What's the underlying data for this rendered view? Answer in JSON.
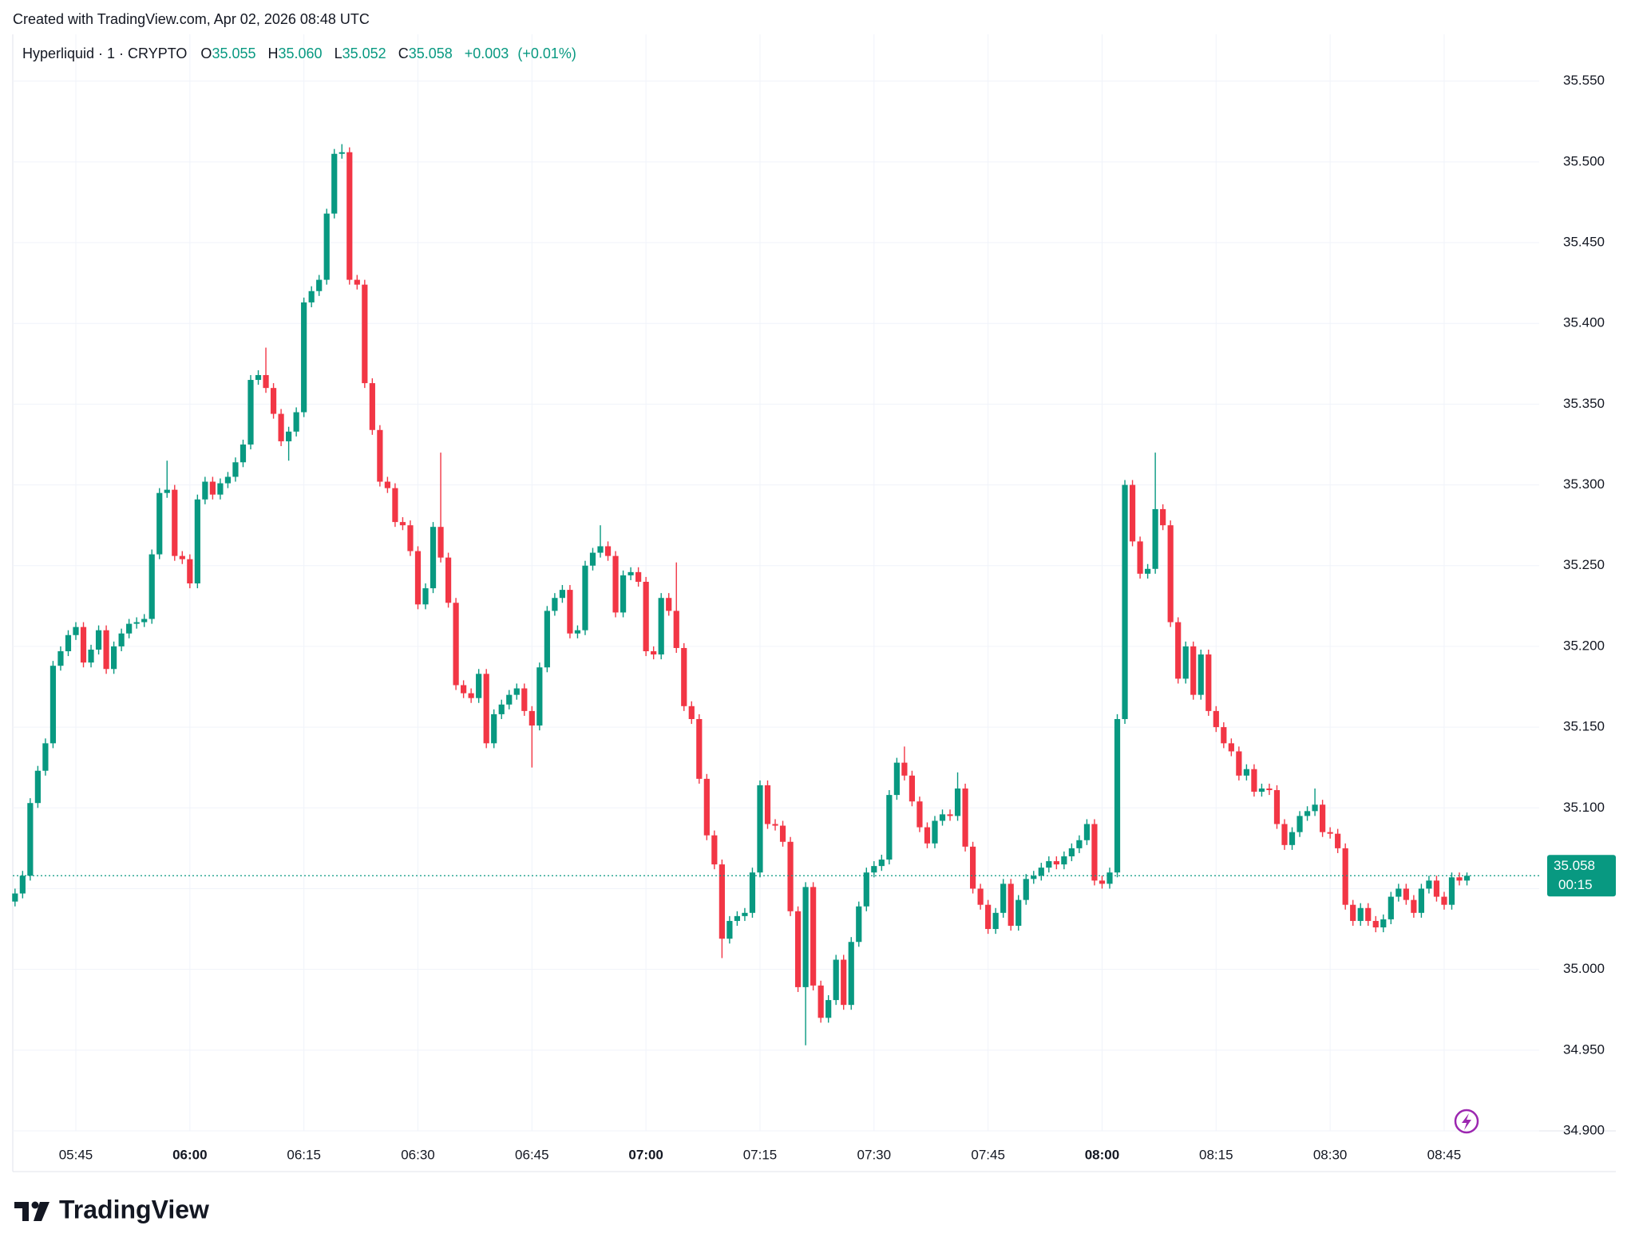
{
  "header": {
    "created": "Created with TradingView.com, Apr 02, 2026 08:48 UTC"
  },
  "footer": {
    "brand": "TradingView"
  },
  "chart_data": {
    "type": "candlestick",
    "title": "Hyperliquid · 1 · CRYPTO",
    "legend_keys": [
      "O",
      "H",
      "L",
      "C"
    ],
    "legend_values": [
      "35.055",
      "35.060",
      "35.052",
      "35.058"
    ],
    "change": "+0.003",
    "change_pct": "(+0.01%)",
    "countdown": "00:15",
    "up_color": "#089981",
    "down_color": "#f23645",
    "grid": true,
    "ylim": [
      34.9,
      35.579
    ],
    "yticks": [
      {
        "value": 34.9,
        "label": "34.900"
      },
      {
        "value": 34.95,
        "label": "34.950"
      },
      {
        "value": 35.0,
        "label": "35.000"
      },
      {
        "value": 35.05,
        "label": "35.050"
      },
      {
        "value": 35.1,
        "label": "35.100"
      },
      {
        "value": 35.15,
        "label": "35.150"
      },
      {
        "value": 35.2,
        "label": "35.200"
      },
      {
        "value": 35.25,
        "label": "35.250"
      },
      {
        "value": 35.3,
        "label": "35.300"
      },
      {
        "value": 35.35,
        "label": "35.350"
      },
      {
        "value": 35.4,
        "label": "35.400"
      },
      {
        "value": 35.45,
        "label": "35.450"
      },
      {
        "value": 35.5,
        "label": "35.500"
      },
      {
        "value": 35.55,
        "label": "35.550"
      }
    ],
    "categories": [
      null,
      null,
      null,
      null,
      null,
      null,
      null,
      null,
      "05:45",
      null,
      null,
      null,
      null,
      null,
      null,
      null,
      null,
      null,
      null,
      null,
      null,
      null,
      null,
      "06:00",
      null,
      null,
      null,
      null,
      null,
      null,
      null,
      null,
      null,
      null,
      null,
      null,
      null,
      null,
      "06:15",
      null,
      null,
      null,
      null,
      null,
      null,
      null,
      null,
      null,
      null,
      null,
      null,
      null,
      null,
      "06:30",
      null,
      null,
      null,
      null,
      null,
      null,
      null,
      null,
      null,
      null,
      null,
      null,
      null,
      null,
      "06:45",
      null,
      null,
      null,
      null,
      null,
      null,
      null,
      null,
      null,
      null,
      null,
      null,
      null,
      null,
      "07:00",
      null,
      null,
      null,
      null,
      null,
      null,
      null,
      null,
      null,
      null,
      null,
      null,
      null,
      null,
      "07:15",
      null,
      null,
      null,
      null,
      null,
      null,
      null,
      null,
      null,
      null,
      null,
      null,
      null,
      null,
      "07:30",
      null,
      null,
      null,
      null,
      null,
      null,
      null,
      null,
      null,
      null,
      null,
      null,
      null,
      null,
      "07:45",
      null,
      null,
      null,
      null,
      null,
      null,
      null,
      null,
      null,
      null,
      null,
      null,
      null,
      null,
      "08:00",
      null,
      null,
      null,
      null,
      null,
      null,
      null,
      null,
      null,
      null,
      null,
      null,
      null,
      null,
      "08:15",
      null,
      null,
      null,
      null,
      null,
      null,
      null,
      null,
      null,
      null,
      null,
      null,
      null,
      null,
      "08:30",
      null,
      null,
      null,
      null,
      null,
      null,
      null,
      null,
      null,
      null,
      null,
      null,
      null,
      null,
      "08:45",
      null,
      null,
      null
    ],
    "open": [
      35.042,
      35.047,
      35.058,
      35.103,
      35.123,
      35.14,
      35.188,
      35.197,
      35.207,
      35.212,
      35.19,
      35.198,
      35.21,
      35.186,
      35.2,
      35.208,
      35.214,
      35.215,
      35.217,
      35.257,
      35.295,
      35.297,
      35.256,
      35.254,
      35.239,
      35.291,
      35.302,
      35.294,
      35.301,
      35.305,
      35.314,
      35.325,
      35.365,
      35.368,
      35.36,
      35.344,
      35.327,
      35.333,
      35.345,
      35.413,
      35.42,
      35.427,
      35.468,
      35.505,
      35.506,
      35.427,
      35.424,
      35.363,
      35.334,
      35.302,
      35.298,
      35.277,
      35.275,
      35.259,
      35.226,
      35.236,
      35.274,
      35.255,
      35.227,
      35.176,
      35.171,
      35.168,
      35.183,
      35.14,
      35.158,
      35.164,
      35.17,
      35.174,
      35.16,
      35.151,
      35.187,
      35.222,
      35.23,
      35.235,
      35.208,
      35.21,
      35.25,
      35.258,
      35.262,
      35.256,
      35.221,
      35.244,
      35.246,
      35.24,
      35.197,
      35.195,
      35.23,
      35.222,
      35.199,
      35.163,
      35.155,
      35.118,
      35.083,
      35.065,
      35.019,
      35.03,
      35.033,
      35.035,
      35.06,
      35.114,
      35.09,
      35.089,
      35.079,
      35.036,
      34.989,
      35.051,
      34.99,
      34.97,
      34.981,
      35.006,
      34.978,
      35.017,
      35.039,
      35.06,
      35.064,
      35.068,
      35.108,
      35.128,
      35.12,
      35.104,
      35.088,
      35.078,
      35.092,
      35.096,
      35.095,
      35.112,
      35.076,
      35.05,
      35.04,
      35.025,
      35.035,
      35.053,
      35.027,
      35.043,
      35.056,
      35.058,
      35.063,
      35.067,
      35.065,
      35.07,
      35.075,
      35.08,
      35.09,
      35.055,
      35.053,
      35.06,
      35.155,
      35.3,
      35.265,
      35.245,
      35.248,
      35.285,
      35.275,
      35.215,
      35.18,
      35.2,
      35.17,
      35.195,
      35.16,
      35.15,
      35.14,
      35.135,
      35.12,
      35.124,
      35.11,
      35.112,
      35.111,
      35.09,
      35.077,
      35.085,
      35.095,
      35.098,
      35.102,
      35.085,
      35.084,
      35.075,
      35.04,
      35.03,
      35.038,
      35.03,
      35.026,
      35.031,
      35.045,
      35.05,
      35.043,
      35.035,
      35.05,
      35.055,
      35.045,
      35.04,
      35.057,
      35.055
    ],
    "high": [
      35.05,
      35.061,
      35.106,
      35.126,
      35.143,
      35.191,
      35.2,
      35.21,
      35.215,
      35.215,
      35.201,
      35.213,
      35.213,
      35.203,
      35.211,
      35.217,
      35.218,
      35.22,
      35.26,
      35.298,
      35.315,
      35.3,
      35.259,
      35.257,
      35.294,
      35.305,
      35.305,
      35.304,
      35.308,
      35.317,
      35.328,
      35.368,
      35.371,
      35.385,
      35.363,
      35.347,
      35.336,
      35.348,
      35.416,
      35.423,
      35.43,
      35.471,
      35.508,
      35.511,
      35.509,
      35.43,
      35.427,
      35.366,
      35.337,
      35.305,
      35.301,
      35.28,
      35.278,
      35.262,
      35.239,
      35.277,
      35.32,
      35.258,
      35.23,
      35.179,
      35.174,
      35.186,
      35.186,
      35.161,
      35.167,
      35.173,
      35.177,
      35.177,
      35.163,
      35.19,
      35.225,
      35.233,
      35.238,
      35.238,
      35.213,
      35.253,
      35.261,
      35.275,
      35.265,
      35.259,
      35.247,
      35.249,
      35.249,
      35.243,
      35.2,
      35.233,
      35.233,
      35.252,
      35.202,
      35.166,
      35.158,
      35.121,
      35.086,
      35.068,
      35.033,
      35.036,
      35.038,
      35.063,
      35.117,
      35.117,
      35.093,
      35.092,
      35.082,
      35.039,
      35.054,
      35.054,
      34.993,
      34.984,
      35.009,
      35.009,
      35.02,
      35.042,
      35.063,
      35.067,
      35.071,
      35.111,
      35.131,
      35.138,
      35.123,
      35.107,
      35.091,
      35.095,
      35.099,
      35.099,
      35.122,
      35.115,
      35.079,
      35.053,
      35.043,
      35.038,
      35.056,
      35.056,
      35.046,
      35.059,
      35.061,
      35.066,
      35.07,
      35.07,
      35.073,
      35.078,
      35.083,
      35.093,
      35.093,
      35.058,
      35.063,
      35.158,
      35.303,
      35.303,
      35.268,
      35.251,
      35.32,
      35.288,
      35.278,
      35.218,
      35.203,
      35.203,
      35.198,
      35.198,
      35.163,
      35.153,
      35.143,
      35.138,
      35.127,
      35.127,
      35.115,
      35.115,
      35.114,
      35.093,
      35.088,
      35.098,
      35.101,
      35.112,
      35.105,
      35.088,
      35.087,
      35.078,
      35.043,
      35.041,
      35.041,
      35.033,
      35.034,
      35.048,
      35.053,
      35.053,
      35.046,
      35.053,
      35.058,
      35.058,
      35.048,
      35.06,
      35.06,
      35.06
    ],
    "low": [
      35.039,
      35.044,
      35.055,
      35.1,
      35.12,
      35.137,
      35.185,
      35.194,
      35.204,
      35.187,
      35.187,
      35.195,
      35.183,
      35.183,
      35.197,
      35.205,
      35.211,
      35.212,
      35.214,
      35.254,
      35.292,
      35.253,
      35.251,
      35.236,
      35.236,
      35.288,
      35.291,
      35.291,
      35.298,
      35.302,
      35.311,
      35.322,
      35.362,
      35.357,
      35.341,
      35.324,
      35.315,
      35.33,
      35.342,
      35.41,
      35.417,
      35.424,
      35.465,
      35.502,
      35.424,
      35.421,
      35.36,
      35.331,
      35.299,
      35.295,
      35.274,
      35.272,
      35.256,
      35.223,
      35.223,
      35.233,
      35.252,
      35.224,
      35.173,
      35.168,
      35.165,
      35.165,
      35.137,
      35.137,
      35.155,
      35.161,
      35.167,
      35.157,
      35.125,
      35.148,
      35.184,
      35.219,
      35.227,
      35.205,
      35.205,
      35.207,
      35.247,
      35.255,
      35.253,
      35.218,
      35.218,
      35.241,
      35.237,
      35.194,
      35.192,
      35.192,
      35.219,
      35.196,
      35.16,
      35.152,
      35.115,
      35.08,
      35.062,
      35.007,
      35.016,
      35.027,
      35.03,
      35.032,
      35.057,
      35.087,
      35.086,
      35.076,
      35.033,
      34.986,
      34.953,
      34.987,
      34.967,
      34.967,
      34.978,
      34.975,
      34.975,
      35.014,
      35.036,
      35.057,
      35.061,
      35.065,
      35.105,
      35.117,
      35.101,
      35.085,
      35.075,
      35.075,
      35.089,
      35.092,
      35.092,
      35.073,
      35.047,
      35.037,
      35.022,
      35.022,
      35.032,
      35.024,
      35.024,
      35.04,
      35.053,
      35.055,
      35.06,
      35.062,
      35.062,
      35.067,
      35.072,
      35.077,
      35.052,
      35.05,
      35.05,
      35.057,
      35.152,
      35.262,
      35.242,
      35.242,
      35.245,
      35.272,
      35.212,
      35.177,
      35.177,
      35.167,
      35.167,
      35.157,
      35.147,
      35.137,
      35.132,
      35.117,
      35.117,
      35.107,
      35.107,
      35.108,
      35.087,
      35.074,
      35.074,
      35.082,
      35.092,
      35.095,
      35.082,
      35.081,
      35.072,
      35.037,
      35.027,
      35.027,
      35.027,
      35.023,
      35.023,
      35.028,
      35.042,
      35.04,
      35.032,
      35.032,
      35.047,
      35.042,
      35.037,
      35.037,
      35.052,
      35.052
    ],
    "close": [
      35.047,
      35.058,
      35.103,
      35.123,
      35.14,
      35.188,
      35.197,
      35.207,
      35.212,
      35.19,
      35.198,
      35.21,
      35.186,
      35.2,
      35.208,
      35.214,
      35.215,
      35.217,
      35.257,
      35.295,
      35.297,
      35.256,
      35.254,
      35.239,
      35.291,
      35.302,
      35.294,
      35.301,
      35.305,
      35.314,
      35.325,
      35.365,
      35.368,
      35.36,
      35.344,
      35.327,
      35.333,
      35.345,
      35.413,
      35.42,
      35.427,
      35.468,
      35.505,
      35.506,
      35.427,
      35.424,
      35.363,
      35.334,
      35.302,
      35.298,
      35.277,
      35.275,
      35.259,
      35.226,
      35.236,
      35.274,
      35.255,
      35.227,
      35.176,
      35.171,
      35.168,
      35.183,
      35.14,
      35.158,
      35.164,
      35.17,
      35.174,
      35.16,
      35.151,
      35.187,
      35.222,
      35.23,
      35.235,
      35.208,
      35.21,
      35.25,
      35.258,
      35.262,
      35.256,
      35.221,
      35.244,
      35.246,
      35.24,
      35.197,
      35.195,
      35.23,
      35.222,
      35.199,
      35.163,
      35.155,
      35.118,
      35.083,
      35.065,
      35.019,
      35.03,
      35.033,
      35.035,
      35.06,
      35.114,
      35.09,
      35.089,
      35.079,
      35.036,
      34.989,
      35.051,
      34.99,
      34.97,
      34.981,
      35.006,
      34.978,
      35.017,
      35.039,
      35.06,
      35.064,
      35.068,
      35.108,
      35.128,
      35.12,
      35.104,
      35.088,
      35.078,
      35.092,
      35.096,
      35.095,
      35.112,
      35.076,
      35.05,
      35.04,
      35.025,
      35.035,
      35.053,
      35.027,
      35.043,
      35.056,
      35.058,
      35.063,
      35.067,
      35.065,
      35.07,
      35.075,
      35.08,
      35.09,
      35.055,
      35.053,
      35.06,
      35.155,
      35.3,
      35.265,
      35.245,
      35.248,
      35.285,
      35.275,
      35.215,
      35.18,
      35.2,
      35.17,
      35.195,
      35.16,
      35.15,
      35.14,
      35.135,
      35.12,
      35.124,
      35.11,
      35.112,
      35.111,
      35.09,
      35.077,
      35.085,
      35.095,
      35.098,
      35.102,
      35.085,
      35.084,
      35.075,
      35.04,
      35.03,
      35.038,
      35.03,
      35.026,
      35.031,
      35.045,
      35.05,
      35.043,
      35.035,
      35.05,
      35.055,
      35.045,
      35.04,
      35.057,
      35.055,
      35.058
    ]
  }
}
